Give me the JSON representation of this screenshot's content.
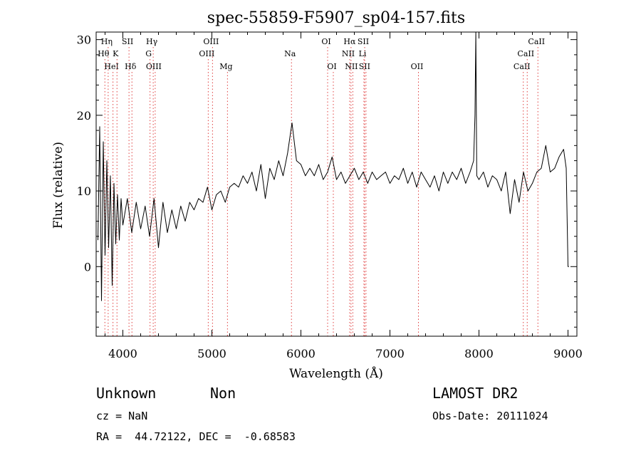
{
  "chart_data": {
    "type": "line",
    "title": "spec-55859-F5907_sp04-157.fits",
    "xlabel": "Wavelength (Å)",
    "ylabel": "Flux (relative)",
    "xlim": [
      3700,
      9100
    ],
    "ylim": [
      -9.2,
      31
    ],
    "xticks": [
      4000,
      5000,
      6000,
      7000,
      8000,
      9000
    ],
    "yticks": [
      0,
      10,
      20,
      30
    ],
    "grid": false,
    "legend": "none",
    "series": [
      {
        "x": [
          3720,
          3740,
          3760,
          3780,
          3800,
          3820,
          3840,
          3860,
          3880,
          3900,
          3920,
          3940,
          3960,
          3980,
          4000,
          4050,
          4100,
          4150,
          4200,
          4250,
          4300,
          4350,
          4400,
          4450,
          4500,
          4550,
          4600,
          4650,
          4700,
          4750,
          4800,
          4850,
          4900,
          4950,
          5000,
          5050,
          5100,
          5150,
          5200,
          5250,
          5300,
          5350,
          5400,
          5450,
          5500,
          5550,
          5600,
          5650,
          5700,
          5750,
          5800,
          5850,
          5900,
          5950,
          6000,
          6050,
          6100,
          6150,
          6200,
          6250,
          6300,
          6350,
          6400,
          6450,
          6500,
          6550,
          6600,
          6650,
          6700,
          6750,
          6800,
          6850,
          6900,
          6950,
          7000,
          7050,
          7100,
          7150,
          7200,
          7250,
          7300,
          7350,
          7400,
          7450,
          7500,
          7550,
          7600,
          7650,
          7700,
          7750,
          7800,
          7850,
          7900,
          7940,
          7955,
          7965,
          7975,
          8000,
          8050,
          8100,
          8150,
          8200,
          8250,
          8300,
          8350,
          8400,
          8450,
          8500,
          8550,
          8600,
          8650,
          8700,
          8750,
          8800,
          8850,
          8900,
          8950,
          8980,
          9000,
          9010
        ],
        "y": [
          3.5,
          18.5,
          -4.5,
          16.5,
          1.5,
          14.0,
          2.5,
          12.0,
          -2.5,
          11.0,
          3.0,
          9.5,
          3.5,
          9.0,
          5.5,
          9.0,
          4.5,
          8.5,
          5.0,
          8.0,
          4.0,
          9.0,
          2.5,
          8.5,
          4.5,
          7.5,
          5.0,
          8.0,
          6.0,
          8.5,
          7.5,
          9.0,
          8.5,
          10.5,
          7.5,
          9.5,
          10.0,
          8.5,
          10.5,
          11.0,
          10.5,
          12.0,
          11.0,
          12.5,
          10.0,
          13.5,
          9.0,
          13.0,
          11.5,
          14.0,
          12.0,
          15.0,
          19.0,
          14.0,
          13.5,
          12.0,
          13.0,
          12.0,
          13.5,
          11.5,
          12.5,
          14.5,
          11.5,
          12.5,
          11.0,
          12.0,
          13.0,
          11.5,
          12.5,
          11.0,
          12.5,
          11.5,
          12.0,
          12.5,
          11.0,
          12.0,
          11.5,
          13.0,
          11.0,
          12.5,
          10.5,
          12.5,
          11.5,
          10.5,
          12.0,
          10.0,
          12.5,
          11.0,
          12.5,
          11.5,
          13.0,
          11.0,
          12.5,
          14.0,
          20.0,
          31.0,
          12.0,
          11.5,
          12.5,
          10.5,
          12.0,
          11.5,
          10.0,
          12.5,
          7.0,
          11.5,
          8.5,
          12.5,
          10.0,
          11.0,
          12.5,
          13.0,
          16.0,
          12.5,
          13.0,
          14.5,
          15.5,
          13.0,
          0.0,
          0.0
        ]
      }
    ],
    "line_markers": [
      {
        "label": "Hη",
        "x": 3835,
        "row": 1
      },
      {
        "label": "Hθ",
        "x": 3798,
        "row": 2
      },
      {
        "label": "HeI",
        "x": 3889,
        "row": 3
      },
      {
        "label": "SII",
        "x": 4069,
        "row": 1
      },
      {
        "label": "K",
        "x": 3934,
        "row": 2
      },
      {
        "label": "Hδ",
        "x": 4102,
        "row": 3
      },
      {
        "label": "Hγ",
        "x": 4341,
        "row": 1
      },
      {
        "label": "G",
        "x": 4305,
        "row": 2
      },
      {
        "label": "OIII",
        "x": 4363,
        "row": 3
      },
      {
        "label": "OIII",
        "x": 5007,
        "row": 1
      },
      {
        "label": "OIII",
        "x": 4959,
        "row": 2
      },
      {
        "label": "Mg",
        "x": 5175,
        "row": 3
      },
      {
        "label": "Na",
        "x": 5894,
        "row": 2
      },
      {
        "label": "OI",
        "x": 6300,
        "row": 1
      },
      {
        "label": "OI",
        "x": 6364,
        "row": 3
      },
      {
        "label": "Hα",
        "x": 6563,
        "row": 1
      },
      {
        "label": "SII",
        "x": 6716,
        "row": 1
      },
      {
        "label": "NII",
        "x": 6548,
        "row": 2
      },
      {
        "label": "Li",
        "x": 6708,
        "row": 2
      },
      {
        "label": "NII",
        "x": 6583,
        "row": 3
      },
      {
        "label": "SII",
        "x": 6731,
        "row": 3
      },
      {
        "label": "OII",
        "x": 7320,
        "row": 3
      },
      {
        "label": "CaII",
        "x": 8662,
        "row": 1
      },
      {
        "label": "CaII",
        "x": 8542,
        "row": 2
      },
      {
        "label": "CaII",
        "x": 8498,
        "row": 3
      }
    ]
  },
  "info": {
    "class": "Unknown",
    "subclass": "Non",
    "survey": "LAMOST DR2",
    "cz": "cz = NaN",
    "obs_date": "Obs-Date: 20111024",
    "coords": "RA =  44.72122, DEC =  -0.68583"
  }
}
